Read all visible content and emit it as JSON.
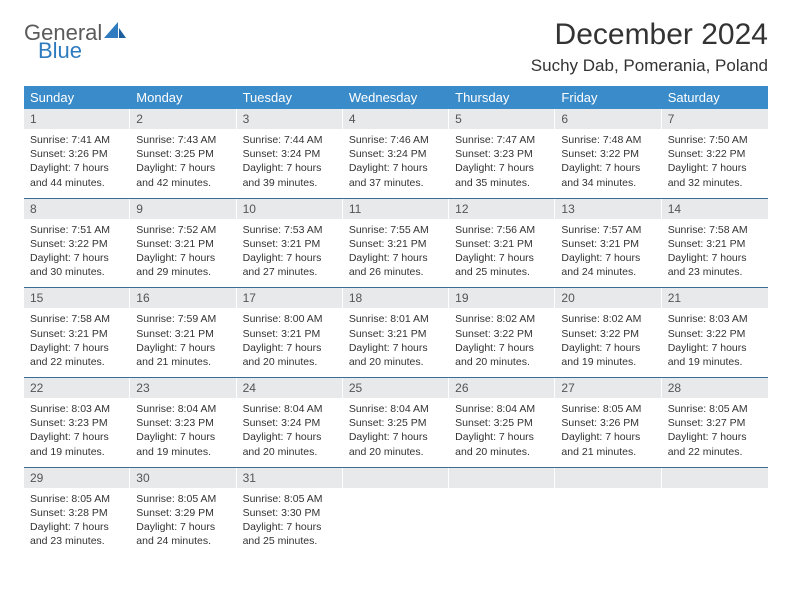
{
  "logo": {
    "top": "General",
    "bottom": "Blue"
  },
  "title": "December 2024",
  "location": "Suchy Dab, Pomerania, Poland",
  "colors": {
    "header_bg": "#3a8bc9",
    "daynum_bg": "#e7e9ea",
    "week_border": "#3a6c94",
    "logo_gray": "#5a5a5a",
    "logo_blue": "#2f7bbf"
  },
  "weekdays": [
    "Sunday",
    "Monday",
    "Tuesday",
    "Wednesday",
    "Thursday",
    "Friday",
    "Saturday"
  ],
  "weeks": [
    [
      {
        "n": "1",
        "sr": "Sunrise: 7:41 AM",
        "ss": "Sunset: 3:26 PM",
        "dl1": "Daylight: 7 hours",
        "dl2": "and 44 minutes."
      },
      {
        "n": "2",
        "sr": "Sunrise: 7:43 AM",
        "ss": "Sunset: 3:25 PM",
        "dl1": "Daylight: 7 hours",
        "dl2": "and 42 minutes."
      },
      {
        "n": "3",
        "sr": "Sunrise: 7:44 AM",
        "ss": "Sunset: 3:24 PM",
        "dl1": "Daylight: 7 hours",
        "dl2": "and 39 minutes."
      },
      {
        "n": "4",
        "sr": "Sunrise: 7:46 AM",
        "ss": "Sunset: 3:24 PM",
        "dl1": "Daylight: 7 hours",
        "dl2": "and 37 minutes."
      },
      {
        "n": "5",
        "sr": "Sunrise: 7:47 AM",
        "ss": "Sunset: 3:23 PM",
        "dl1": "Daylight: 7 hours",
        "dl2": "and 35 minutes."
      },
      {
        "n": "6",
        "sr": "Sunrise: 7:48 AM",
        "ss": "Sunset: 3:22 PM",
        "dl1": "Daylight: 7 hours",
        "dl2": "and 34 minutes."
      },
      {
        "n": "7",
        "sr": "Sunrise: 7:50 AM",
        "ss": "Sunset: 3:22 PM",
        "dl1": "Daylight: 7 hours",
        "dl2": "and 32 minutes."
      }
    ],
    [
      {
        "n": "8",
        "sr": "Sunrise: 7:51 AM",
        "ss": "Sunset: 3:22 PM",
        "dl1": "Daylight: 7 hours",
        "dl2": "and 30 minutes."
      },
      {
        "n": "9",
        "sr": "Sunrise: 7:52 AM",
        "ss": "Sunset: 3:21 PM",
        "dl1": "Daylight: 7 hours",
        "dl2": "and 29 minutes."
      },
      {
        "n": "10",
        "sr": "Sunrise: 7:53 AM",
        "ss": "Sunset: 3:21 PM",
        "dl1": "Daylight: 7 hours",
        "dl2": "and 27 minutes."
      },
      {
        "n": "11",
        "sr": "Sunrise: 7:55 AM",
        "ss": "Sunset: 3:21 PM",
        "dl1": "Daylight: 7 hours",
        "dl2": "and 26 minutes."
      },
      {
        "n": "12",
        "sr": "Sunrise: 7:56 AM",
        "ss": "Sunset: 3:21 PM",
        "dl1": "Daylight: 7 hours",
        "dl2": "and 25 minutes."
      },
      {
        "n": "13",
        "sr": "Sunrise: 7:57 AM",
        "ss": "Sunset: 3:21 PM",
        "dl1": "Daylight: 7 hours",
        "dl2": "and 24 minutes."
      },
      {
        "n": "14",
        "sr": "Sunrise: 7:58 AM",
        "ss": "Sunset: 3:21 PM",
        "dl1": "Daylight: 7 hours",
        "dl2": "and 23 minutes."
      }
    ],
    [
      {
        "n": "15",
        "sr": "Sunrise: 7:58 AM",
        "ss": "Sunset: 3:21 PM",
        "dl1": "Daylight: 7 hours",
        "dl2": "and 22 minutes."
      },
      {
        "n": "16",
        "sr": "Sunrise: 7:59 AM",
        "ss": "Sunset: 3:21 PM",
        "dl1": "Daylight: 7 hours",
        "dl2": "and 21 minutes."
      },
      {
        "n": "17",
        "sr": "Sunrise: 8:00 AM",
        "ss": "Sunset: 3:21 PM",
        "dl1": "Daylight: 7 hours",
        "dl2": "and 20 minutes."
      },
      {
        "n": "18",
        "sr": "Sunrise: 8:01 AM",
        "ss": "Sunset: 3:21 PM",
        "dl1": "Daylight: 7 hours",
        "dl2": "and 20 minutes."
      },
      {
        "n": "19",
        "sr": "Sunrise: 8:02 AM",
        "ss": "Sunset: 3:22 PM",
        "dl1": "Daylight: 7 hours",
        "dl2": "and 20 minutes."
      },
      {
        "n": "20",
        "sr": "Sunrise: 8:02 AM",
        "ss": "Sunset: 3:22 PM",
        "dl1": "Daylight: 7 hours",
        "dl2": "and 19 minutes."
      },
      {
        "n": "21",
        "sr": "Sunrise: 8:03 AM",
        "ss": "Sunset: 3:22 PM",
        "dl1": "Daylight: 7 hours",
        "dl2": "and 19 minutes."
      }
    ],
    [
      {
        "n": "22",
        "sr": "Sunrise: 8:03 AM",
        "ss": "Sunset: 3:23 PM",
        "dl1": "Daylight: 7 hours",
        "dl2": "and 19 minutes."
      },
      {
        "n": "23",
        "sr": "Sunrise: 8:04 AM",
        "ss": "Sunset: 3:23 PM",
        "dl1": "Daylight: 7 hours",
        "dl2": "and 19 minutes."
      },
      {
        "n": "24",
        "sr": "Sunrise: 8:04 AM",
        "ss": "Sunset: 3:24 PM",
        "dl1": "Daylight: 7 hours",
        "dl2": "and 20 minutes."
      },
      {
        "n": "25",
        "sr": "Sunrise: 8:04 AM",
        "ss": "Sunset: 3:25 PM",
        "dl1": "Daylight: 7 hours",
        "dl2": "and 20 minutes."
      },
      {
        "n": "26",
        "sr": "Sunrise: 8:04 AM",
        "ss": "Sunset: 3:25 PM",
        "dl1": "Daylight: 7 hours",
        "dl2": "and 20 minutes."
      },
      {
        "n": "27",
        "sr": "Sunrise: 8:05 AM",
        "ss": "Sunset: 3:26 PM",
        "dl1": "Daylight: 7 hours",
        "dl2": "and 21 minutes."
      },
      {
        "n": "28",
        "sr": "Sunrise: 8:05 AM",
        "ss": "Sunset: 3:27 PM",
        "dl1": "Daylight: 7 hours",
        "dl2": "and 22 minutes."
      }
    ],
    [
      {
        "n": "29",
        "sr": "Sunrise: 8:05 AM",
        "ss": "Sunset: 3:28 PM",
        "dl1": "Daylight: 7 hours",
        "dl2": "and 23 minutes."
      },
      {
        "n": "30",
        "sr": "Sunrise: 8:05 AM",
        "ss": "Sunset: 3:29 PM",
        "dl1": "Daylight: 7 hours",
        "dl2": "and 24 minutes."
      },
      {
        "n": "31",
        "sr": "Sunrise: 8:05 AM",
        "ss": "Sunset: 3:30 PM",
        "dl1": "Daylight: 7 hours",
        "dl2": "and 25 minutes."
      },
      null,
      null,
      null,
      null
    ]
  ]
}
